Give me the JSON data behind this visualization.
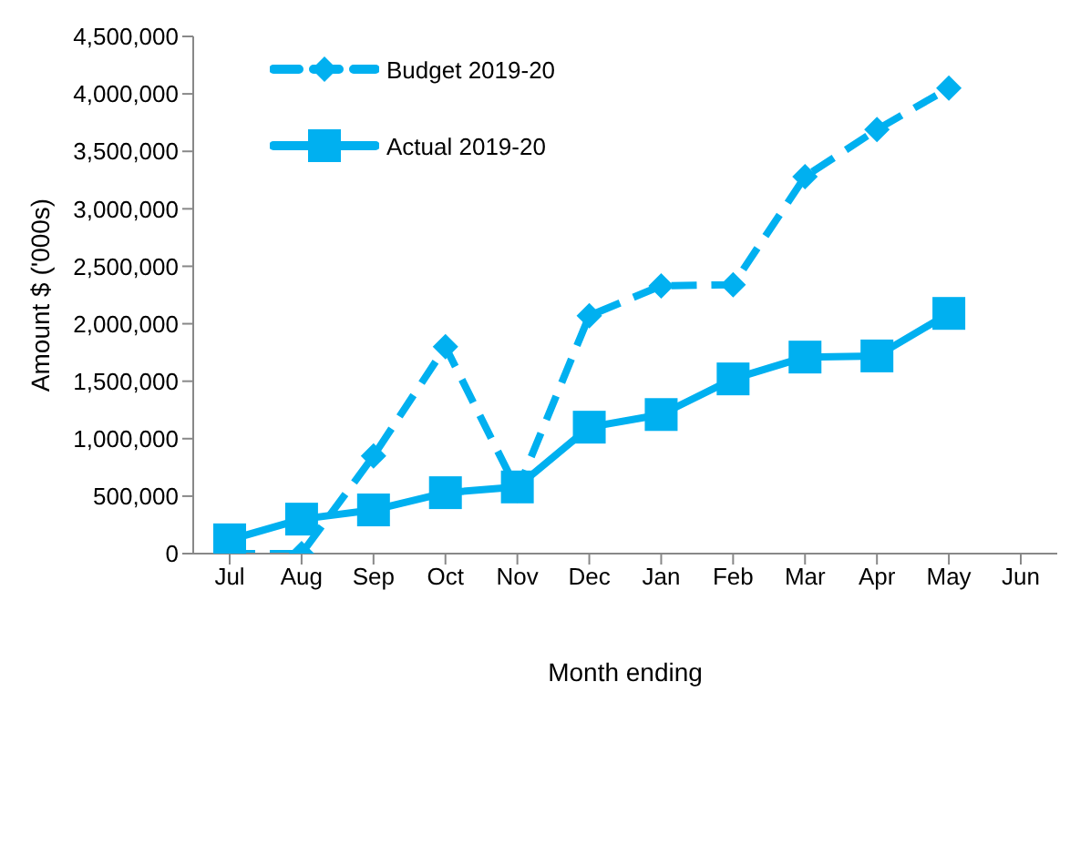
{
  "chart_data": {
    "type": "line",
    "xlabel": "Month ending",
    "ylabel": "Amount $ ('000s)",
    "categories": [
      "Jul",
      "Aug",
      "Sep",
      "Oct",
      "Nov",
      "Dec",
      "Jan",
      "Feb",
      "Mar",
      "Apr",
      "May",
      "Jun"
    ],
    "series": [
      {
        "name": "Budget 2019-20",
        "color": "#00b0f0",
        "marker": "diamond",
        "line_style": "dashed",
        "values": [
          0,
          0,
          850000,
          1800000,
          550000,
          2070000,
          2330000,
          2340000,
          3280000,
          3690000,
          4050000,
          null
        ]
      },
      {
        "name": "Actual 2019-20",
        "color": "#00b0f0",
        "marker": "square",
        "line_style": "solid",
        "values": [
          120000,
          300000,
          380000,
          530000,
          580000,
          1100000,
          1210000,
          1520000,
          1710000,
          1720000,
          2090000,
          null
        ]
      }
    ],
    "ylim": [
      0,
      4500000
    ],
    "yticks": [
      0,
      {
        "value": 500000,
        "label": "500,000"
      },
      {
        "value": 1000000,
        "label": "1,000,000"
      },
      {
        "value": 1500000,
        "label": "1,500,000"
      },
      {
        "value": 2000000,
        "label": "2,000,000"
      },
      {
        "value": 2500000,
        "label": "2,500,000"
      },
      {
        "value": 3000000,
        "label": "3,000,000"
      },
      {
        "value": 3500000,
        "label": "3,500,000"
      },
      {
        "value": 4000000,
        "label": "4,000,000"
      },
      {
        "value": 4500000,
        "label": "4,500,000"
      }
    ],
    "grid": false,
    "legend": "top left"
  }
}
